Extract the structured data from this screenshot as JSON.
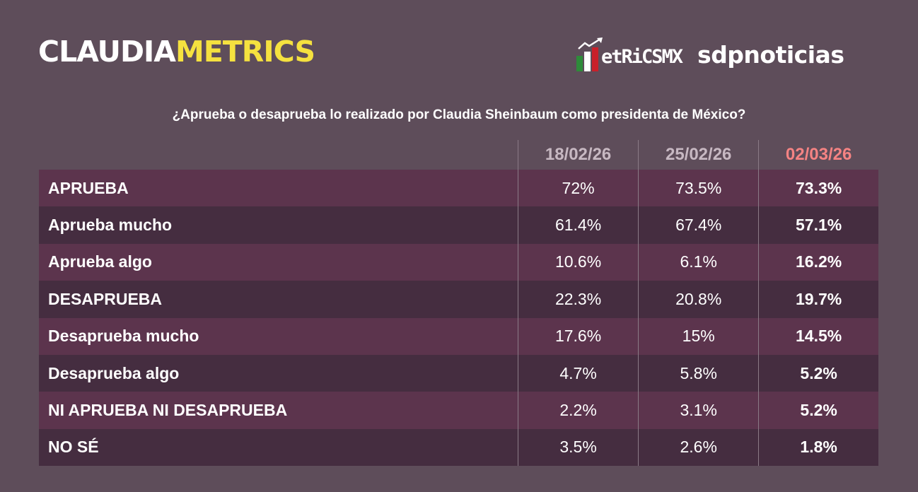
{
  "brand": {
    "part1": "CLAUDIA",
    "part2": "METRICS"
  },
  "logos": {
    "metrics": "etRiCSMX",
    "sdp": "sdpnoticias"
  },
  "question": "¿Aprueba o desaprueba lo realizado por Claudia Sheinbaum como presidenta de México?",
  "columns": [
    "18/02/26",
    "25/02/26",
    "02/03/26"
  ],
  "colors": {
    "background": "#5e4d5a",
    "row_odd": "#5c344d",
    "row_even": "#452d40",
    "highlight": "#f58383",
    "brand_yellow": "#f5e13f"
  },
  "rows": [
    {
      "label": "APRUEBA",
      "values": [
        "72%",
        "73.5%",
        "73.3%"
      ]
    },
    {
      "label": "Aprueba mucho",
      "values": [
        "61.4%",
        "67.4%",
        "57.1%"
      ]
    },
    {
      "label": "Aprueba algo",
      "values": [
        "10.6%",
        "6.1%",
        "16.2%"
      ]
    },
    {
      "label": "DESAPRUEBA",
      "values": [
        "22.3%",
        "20.8%",
        "19.7%"
      ]
    },
    {
      "label": "Desaprueba mucho",
      "values": [
        "17.6%",
        "15%",
        "14.5%"
      ]
    },
    {
      "label": "Desaprueba algo",
      "values": [
        "4.7%",
        "5.8%",
        "5.2%"
      ]
    },
    {
      "label": "NI APRUEBA NI DESAPRUEBA",
      "values": [
        "2.2%",
        "3.1%",
        "5.2%"
      ]
    },
    {
      "label": "NO SÉ",
      "values": [
        "3.5%",
        "2.6%",
        "1.8%"
      ]
    }
  ]
}
